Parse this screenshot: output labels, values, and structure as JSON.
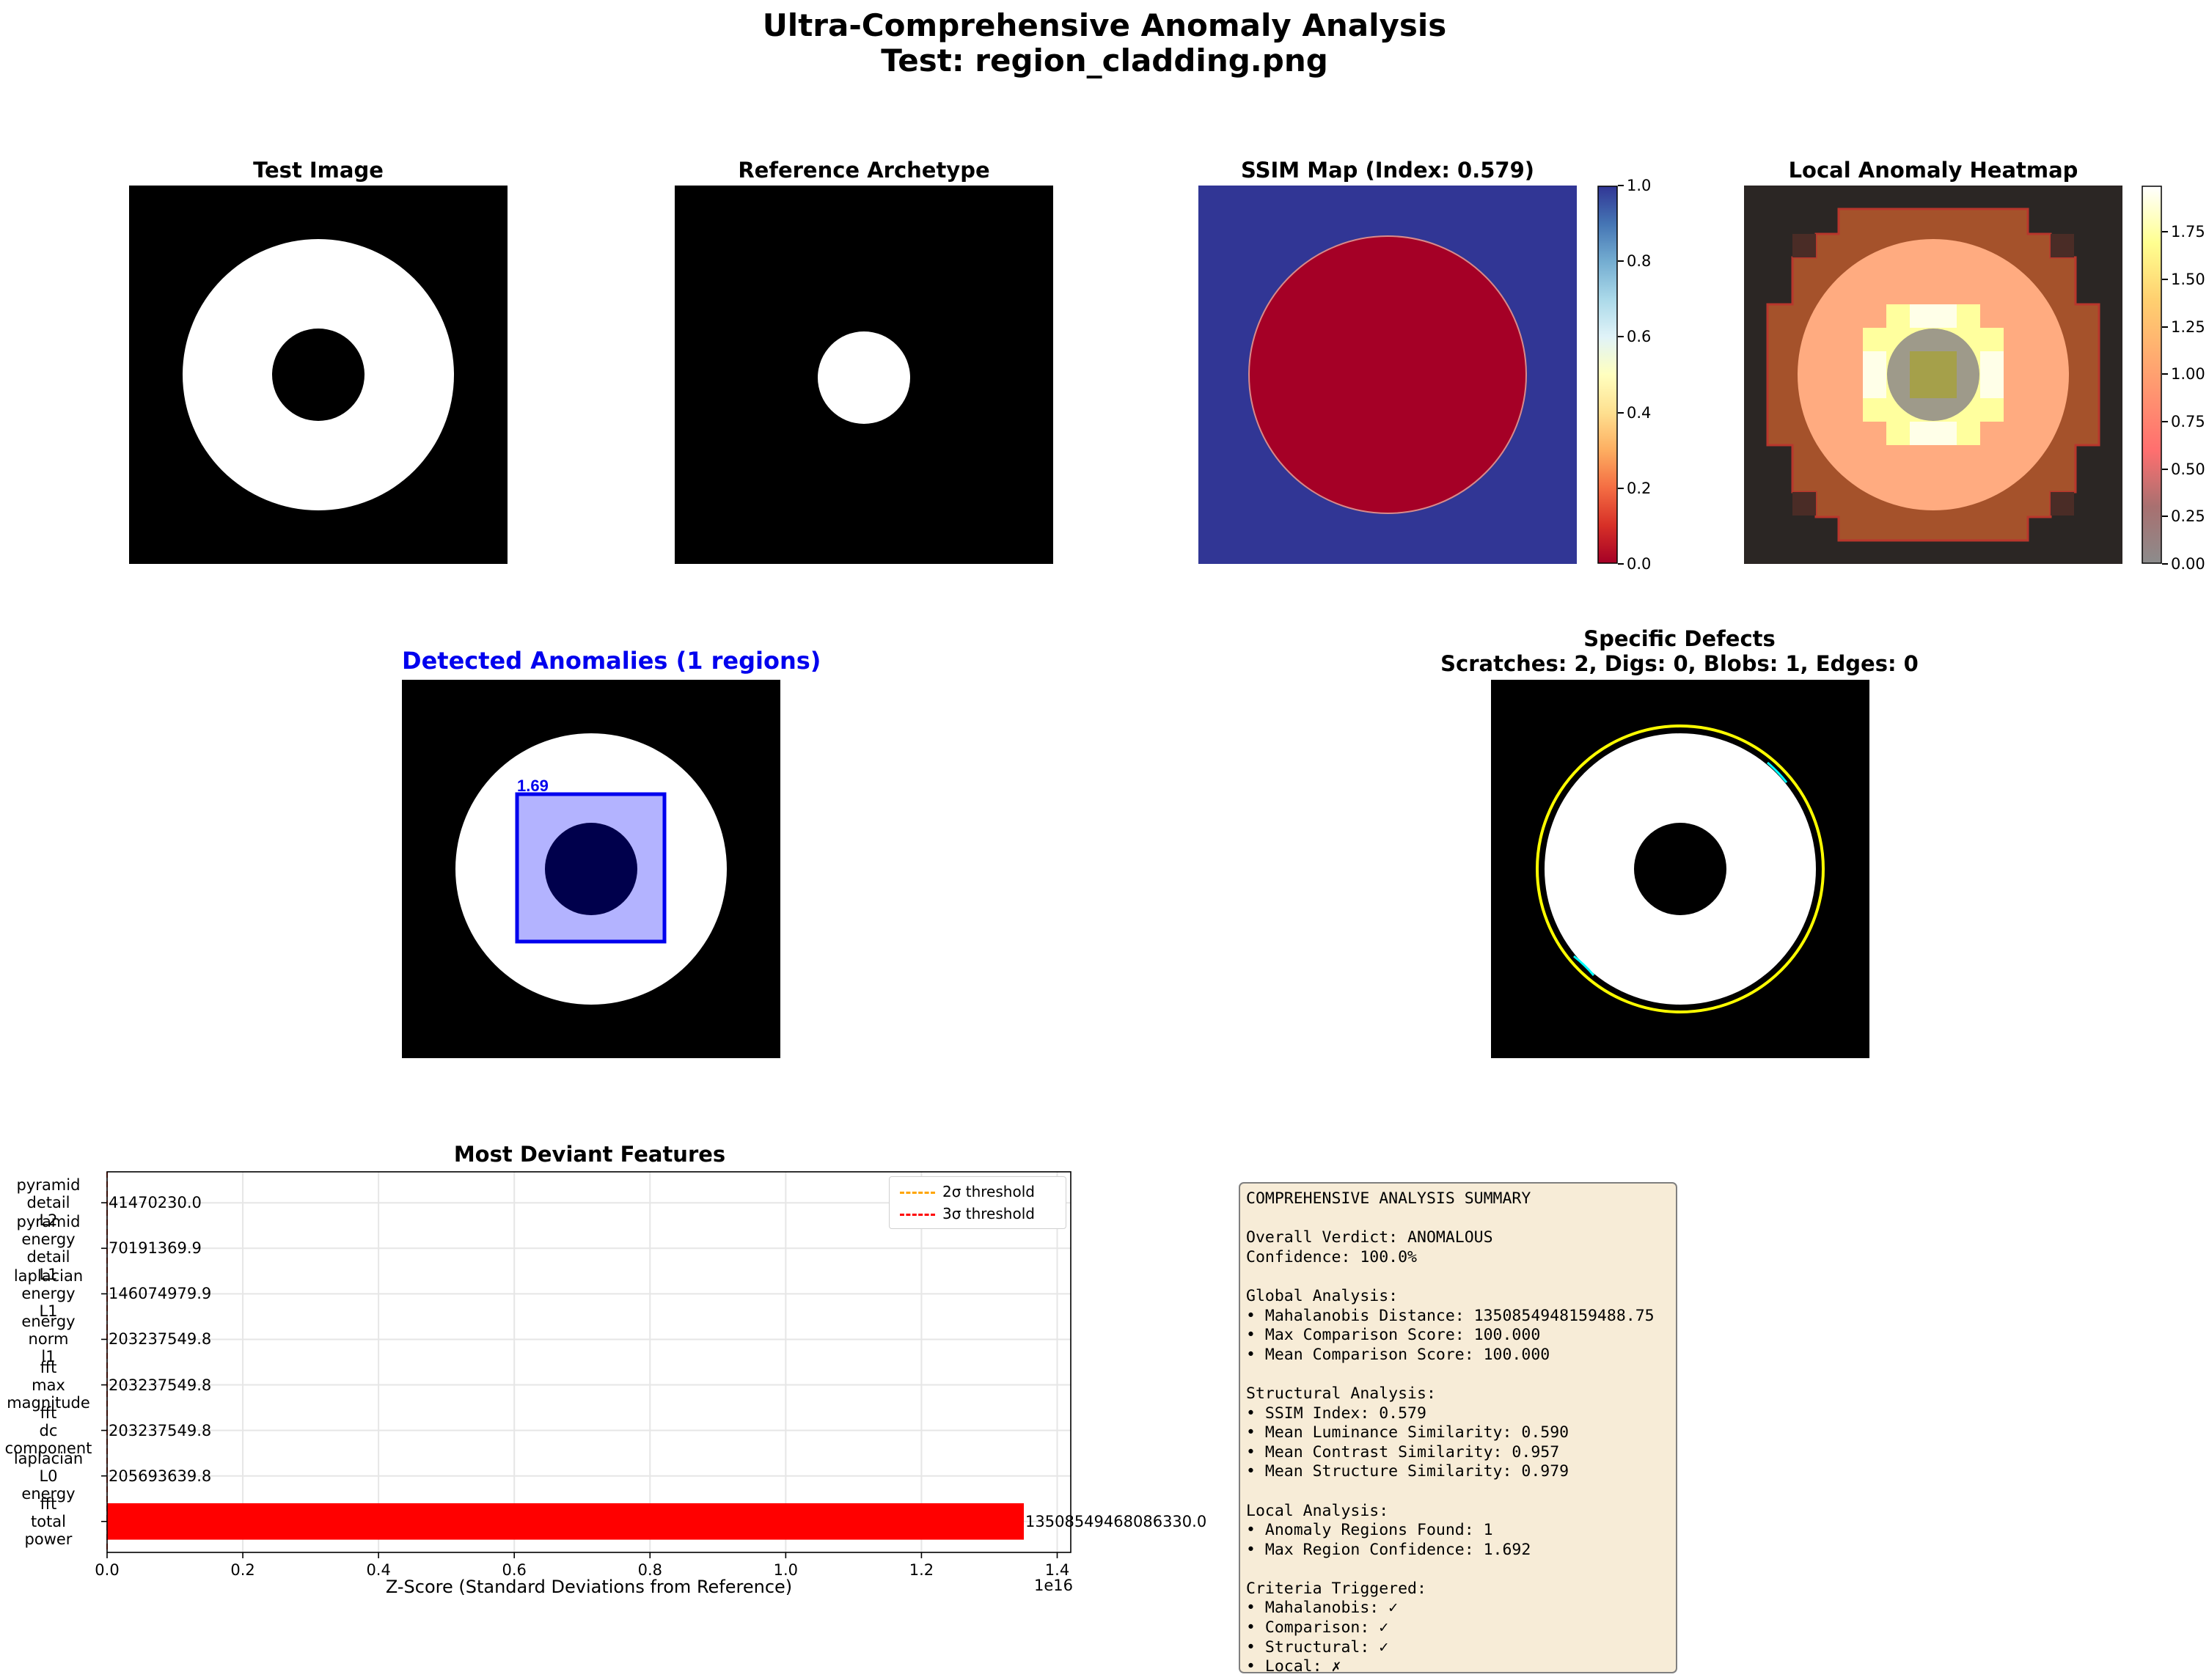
{
  "suptitle": {
    "line1": "Ultra-Comprehensive Anomaly Analysis",
    "line2": "Test: region_cladding.png"
  },
  "panels": {
    "test_image": {
      "title": "Test Image"
    },
    "reference": {
      "title": "Reference Archetype"
    },
    "ssim_map": {
      "title": "SSIM Map (Index: 0.579)",
      "colorbar_ticks": [
        "0.0",
        "0.2",
        "0.4",
        "0.6",
        "0.8",
        "1.0"
      ]
    },
    "heatmap": {
      "title": "Local Anomaly Heatmap",
      "colorbar_ticks": [
        "0.00",
        "0.25",
        "0.50",
        "0.75",
        "1.00",
        "1.25",
        "1.50",
        "1.75"
      ]
    },
    "detected": {
      "title": "Detected Anomalies (1 regions)",
      "box_label": "1.69",
      "title_color": "#0000ee"
    },
    "defects": {
      "title_line1": "Specific Defects",
      "title_line2": "Scratches: 2, Digs: 0, Blobs: 1, Edges: 0"
    }
  },
  "colors": {
    "ssim_low": "#a50026",
    "ssim_high": "#313695",
    "bar": "#ff0000",
    "threshold_2": "#ffa500",
    "threshold_3": "#ff0000",
    "box": "#0000ee",
    "defect_ring": "#ffff00",
    "defect_scratch": "#00ffff"
  },
  "chart_data": {
    "type": "bar",
    "orientation": "horizontal",
    "title": "Most Deviant Features",
    "xlabel": "Z-Score (Standard Deviations from Reference)",
    "x_offset_text": "1e16",
    "xlim": [
      0,
      1.42e+16
    ],
    "x_ticks": [
      0,
      2000000000000000.0,
      4000000000000000.0,
      6000000000000000.0,
      8000000000000000.0,
      1e+16,
      1.2e+16,
      1.4e+16
    ],
    "x_tick_labels": [
      "0.0",
      "0.2",
      "0.4",
      "0.6",
      "0.8",
      "1.0",
      "1.2",
      "1.4"
    ],
    "grid": true,
    "legend_position": "top-right",
    "legend": [
      {
        "label": "2σ threshold",
        "value": 2,
        "color": "#ffa500"
      },
      {
        "label": "3σ threshold",
        "value": 3,
        "color": "#ff0000"
      }
    ],
    "categories": [
      "pyramid\ndetail\nL2",
      "pyramid\nenergy\ndetail\nL1",
      "laplacian\nenergy\nL1",
      "energy\nnorm\nl1",
      "fft\nmax\nmagnitude",
      "fft\ndc\ncomponent",
      "laplacian\nL0\nenergy",
      "fft\ntotal\npower"
    ],
    "values": [
      41470230.0,
      70191369.9,
      146074979.9,
      203237549.8,
      203237549.8,
      203237549.8,
      205693639.8,
      1.350854946808633e+16
    ],
    "value_labels": [
      "41470230.0",
      "70191369.9",
      "146074979.9",
      "203237549.8",
      "203237549.8",
      "203237549.8",
      "205693639.8",
      "13508549468086330.0"
    ]
  },
  "summary": {
    "lines": [
      "COMPREHENSIVE ANALYSIS SUMMARY",
      "",
      "Overall Verdict: ANOMALOUS",
      "Confidence: 100.0%",
      "",
      "Global Analysis:",
      "• Mahalanobis Distance: 1350854948159488.75",
      "• Max Comparison Score: 100.000",
      "• Mean Comparison Score: 100.000",
      "",
      "Structural Analysis:",
      "• SSIM Index: 0.579",
      "• Mean Luminance Similarity: 0.590",
      "• Mean Contrast Similarity: 0.957",
      "• Mean Structure Similarity: 0.979",
      "",
      "Local Analysis:",
      "• Anomaly Regions Found: 1",
      "• Max Region Confidence: 1.692",
      "",
      "Criteria Triggered:",
      "• Mahalanobis: ✓",
      "• Comparison: ✓",
      "• Structural: ✓",
      "• Local: ✗"
    ]
  }
}
